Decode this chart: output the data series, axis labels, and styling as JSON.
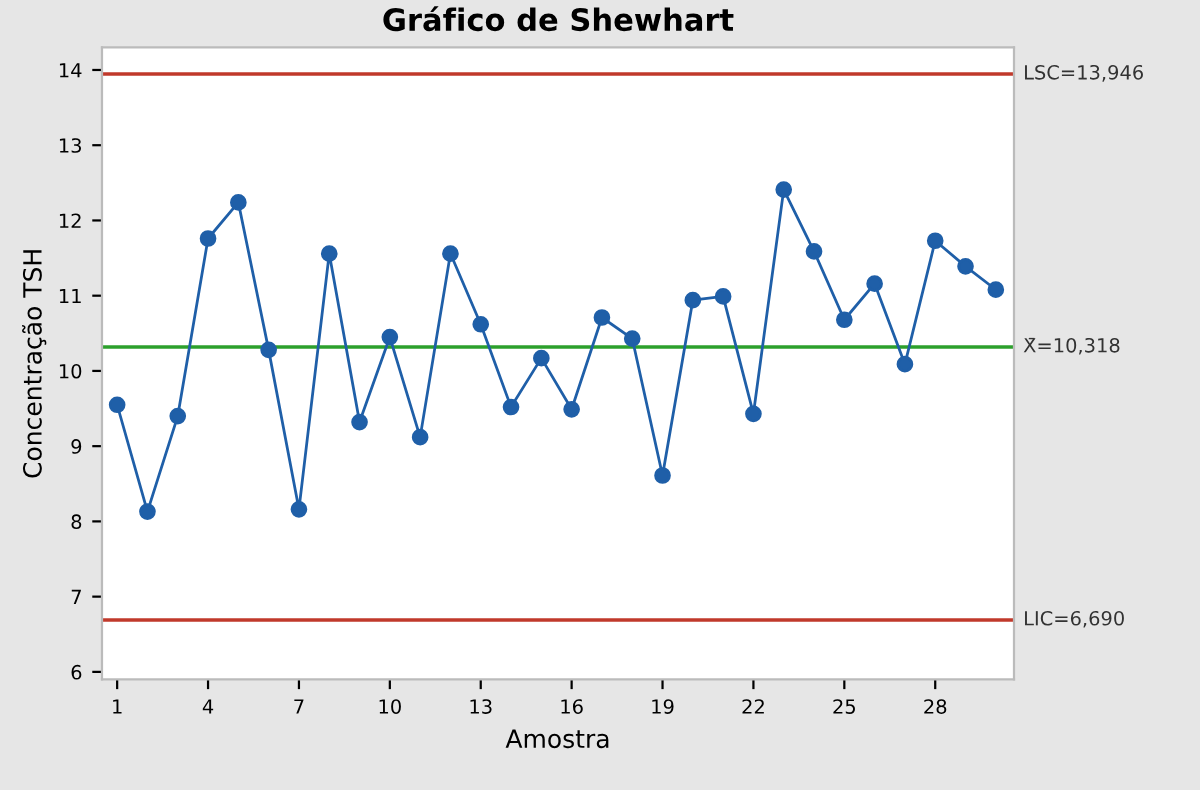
{
  "chart_data": {
    "type": "line",
    "title": "Gráfico de Shewhart",
    "xlabel": "Amostra",
    "ylabel": "Concentração TSH",
    "x": [
      1,
      2,
      3,
      4,
      5,
      6,
      7,
      8,
      9,
      10,
      11,
      12,
      13,
      14,
      15,
      16,
      17,
      18,
      19,
      20,
      21,
      22,
      23,
      24,
      25,
      26,
      27,
      28,
      29,
      30
    ],
    "series": [
      {
        "color": "#1f5fa8",
        "values": [
          9.55,
          8.13,
          9.4,
          11.76,
          12.24,
          10.28,
          8.16,
          11.56,
          9.32,
          10.45,
          9.12,
          11.56,
          10.62,
          9.52,
          10.17,
          9.49,
          10.71,
          10.43,
          8.61,
          10.94,
          10.99,
          9.43,
          12.41,
          11.59,
          10.68,
          11.16,
          10.09,
          11.73,
          11.39,
          11.08
        ]
      }
    ],
    "marker": "circle",
    "line_style": "solid",
    "grid": false,
    "legend": false,
    "xlim": [
      0.5,
      30.6
    ],
    "xticks": [
      1,
      4,
      7,
      10,
      13,
      16,
      19,
      22,
      25,
      28
    ],
    "ylim": [
      5.9,
      14.3
    ],
    "yticks": [
      6,
      7,
      8,
      9,
      10,
      11,
      12,
      13,
      14
    ],
    "ref_lines": [
      {
        "axis": "y",
        "value": 13.946,
        "label": "LSC=13,946",
        "color": "#c0392b",
        "line_style": "solid"
      },
      {
        "axis": "y",
        "value": 10.318,
        "label": "X̄=10,318",
        "color": "#2ca02c",
        "line_style": "solid"
      },
      {
        "axis": "y",
        "value": 6.69,
        "label": "LIC=6,690",
        "color": "#c0392b",
        "line_style": "solid"
      }
    ]
  }
}
